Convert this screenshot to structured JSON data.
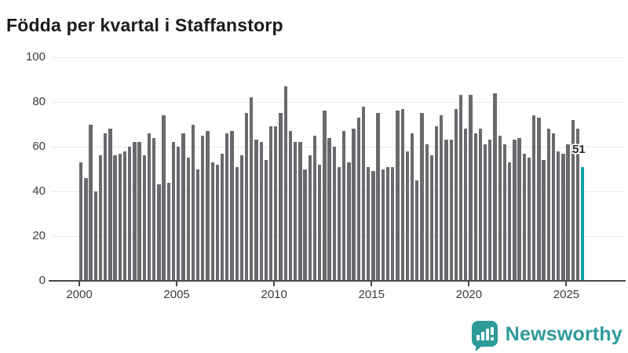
{
  "title": "Födda per kvartal i Staffanstorp",
  "chart_data": {
    "type": "bar",
    "title": "Födda per kvartal i Staffanstorp",
    "x_start_year": 2000,
    "x_period": "quarter",
    "x_tick_labels": [
      "2000",
      "2005",
      "2010",
      "2015",
      "2020",
      "2025"
    ],
    "y_ticks": [
      0,
      20,
      40,
      60,
      80,
      100
    ],
    "ylim": [
      0,
      100
    ],
    "grid": "horizontal",
    "legend": "none",
    "bar_color": "#69696e",
    "values": [
      53,
      46,
      70,
      40,
      56,
      66,
      68,
      56,
      57,
      58,
      60,
      62,
      62,
      56,
      66,
      64,
      43,
      74,
      44,
      62,
      60,
      66,
      55,
      70,
      50,
      65,
      67,
      53,
      52,
      57,
      66,
      67,
      51,
      56,
      75,
      82,
      63,
      62,
      54,
      69,
      69,
      75,
      87,
      67,
      62,
      62,
      50,
      56,
      65,
      52,
      76,
      64,
      60,
      51,
      67,
      53,
      68,
      73,
      78,
      51,
      49,
      75,
      50,
      51,
      51,
      76,
      77,
      58,
      66,
      45,
      75,
      61,
      56,
      69,
      74,
      63,
      63,
      77,
      83,
      68,
      83,
      66,
      68,
      61,
      63,
      84,
      65,
      61,
      53,
      63,
      64,
      57,
      55,
      74,
      73,
      54,
      68,
      66,
      58,
      57,
      61,
      72,
      68,
      51
    ],
    "highlight": {
      "index": 103,
      "value": 51,
      "label": "51",
      "color": "#09a3a3"
    }
  },
  "annotation": {
    "last_value_label": "51"
  },
  "branding": {
    "name": "Newsworthy",
    "color": "#2e9a9a"
  }
}
